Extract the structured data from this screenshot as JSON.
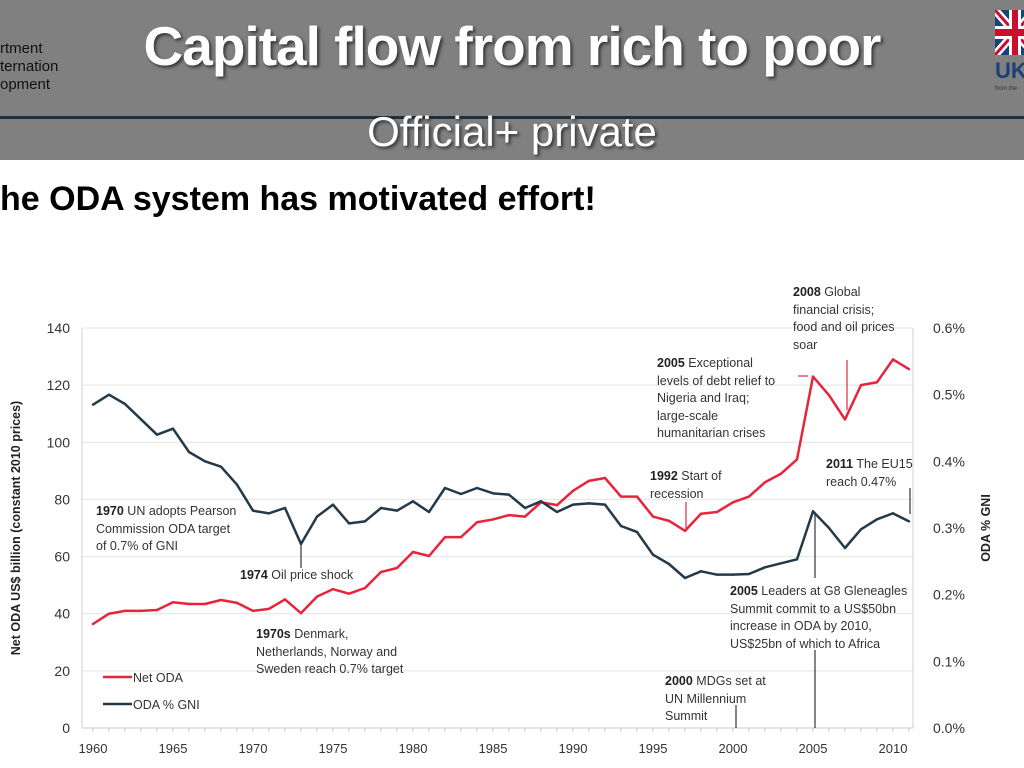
{
  "slide": {
    "title": "Capital flow from rich to poor",
    "subtitle": "Official+ private",
    "heading": "he ODA system has motivated effort!",
    "left_logo_lines": [
      "rtment",
      "ternation",
      "opment"
    ],
    "right_logo_text": "UK",
    "right_logo_small": "from the"
  },
  "colors": {
    "header_bg": "#808080",
    "net_oda": "#e8243c",
    "oda_gni": "#243a48"
  },
  "chart_data": {
    "type": "line",
    "title": "",
    "ylabel": "Net ODA US$ billion (constant 2010 prices)",
    "y2label": "ODA % GNI",
    "xlim": [
      1960,
      2011
    ],
    "ylim": [
      0,
      140
    ],
    "y2lim": [
      0,
      0.6
    ],
    "x_ticks": [
      "1960",
      "1965",
      "1970",
      "1975",
      "1980",
      "1985",
      "1990",
      "1995",
      "2000",
      "2005",
      "2010"
    ],
    "y_ticks": [
      "0",
      "20",
      "40",
      "60",
      "80",
      "100",
      "120",
      "140"
    ],
    "y2_ticks": [
      "0.0%",
      "0.1%",
      "0.2%",
      "0.3%",
      "0.4%",
      "0.5%",
      "0.6%"
    ],
    "grid": true,
    "legend_placement": "bottom-left",
    "x": [
      1960,
      1961,
      1962,
      1963,
      1964,
      1965,
      1966,
      1967,
      1968,
      1969,
      1970,
      1971,
      1972,
      1973,
      1974,
      1975,
      1976,
      1977,
      1978,
      1979,
      1980,
      1981,
      1982,
      1983,
      1984,
      1985,
      1986,
      1987,
      1988,
      1989,
      1990,
      1991,
      1992,
      1993,
      1994,
      1995,
      1996,
      1997,
      1998,
      1999,
      2000,
      2001,
      2002,
      2003,
      2004,
      2005,
      2006,
      2007,
      2008,
      2009,
      2010,
      2011
    ],
    "series": [
      {
        "name": "Net ODA",
        "axis": "left",
        "color": "#e8243c",
        "values": [
          36.4,
          40,
          41,
          41,
          41.3,
          44,
          43.4,
          43.4,
          44.8,
          43.8,
          41,
          41.7,
          45,
          40.2,
          46,
          48.6,
          47,
          49,
          54.6,
          56,
          61.6,
          60.2,
          66.8,
          66.8,
          72,
          73,
          74.5,
          74,
          79,
          78,
          83,
          86.5,
          87.5,
          81,
          81,
          74,
          72.5,
          69,
          75,
          75.6,
          79,
          81,
          86,
          89,
          94,
          123,
          116.5,
          108,
          120,
          121,
          129,
          125.6
        ]
      },
      {
        "name": "ODA % GNI",
        "axis": "right",
        "color": "#243a48",
        "values": [
          0.485,
          0.5,
          0.486,
          0.463,
          0.44,
          0.449,
          0.414,
          0.4,
          0.392,
          0.365,
          0.326,
          0.322,
          0.33,
          0.276,
          0.317,
          0.335,
          0.307,
          0.31,
          0.33,
          0.326,
          0.34,
          0.324,
          0.36,
          0.351,
          0.36,
          0.352,
          0.35,
          0.33,
          0.34,
          0.324,
          0.335,
          0.337,
          0.335,
          0.303,
          0.294,
          0.26,
          0.246,
          0.225,
          0.235,
          0.23,
          0.23,
          0.231,
          0.241,
          0.247,
          0.253,
          0.325,
          0.3,
          0.27,
          0.298,
          0.313,
          0.322,
          0.31
        ]
      }
    ],
    "annotations": [
      {
        "year": "1970",
        "lines": [
          "UN adopts Pearson",
          "Commission ODA target",
          "of 0.7% of GNI"
        ]
      },
      {
        "year": "1974",
        "lines": [
          "Oil price shock"
        ]
      },
      {
        "year": "1970s",
        "lines": [
          " Denmark,",
          "Netherlands, Norway and",
          "Sweden reach 0.7% target"
        ]
      },
      {
        "year": "1992",
        "lines": [
          "Start of",
          "recession"
        ]
      },
      {
        "year": "2005",
        "lines": [
          "Exceptional",
          "levels of debt relief to",
          "Nigeria and Iraq;",
          "large-scale",
          "humanitarian crises"
        ]
      },
      {
        "year": "2008",
        "lines": [
          "Global",
          "financial crisis;",
          "food and oil prices",
          "soar"
        ]
      },
      {
        "year": "2011",
        "lines": [
          "The EU15",
          "reach 0.47%"
        ]
      },
      {
        "year": "2005",
        "lines": [
          "Leaders at G8 Gleneagles",
          "Summit commit to a US$50bn",
          "increase in ODA by 2010,",
          "US$25bn of which to Africa"
        ]
      },
      {
        "year": "2000",
        "lines": [
          "MDGs set at",
          "UN Millennium",
          "Summit"
        ]
      }
    ]
  }
}
